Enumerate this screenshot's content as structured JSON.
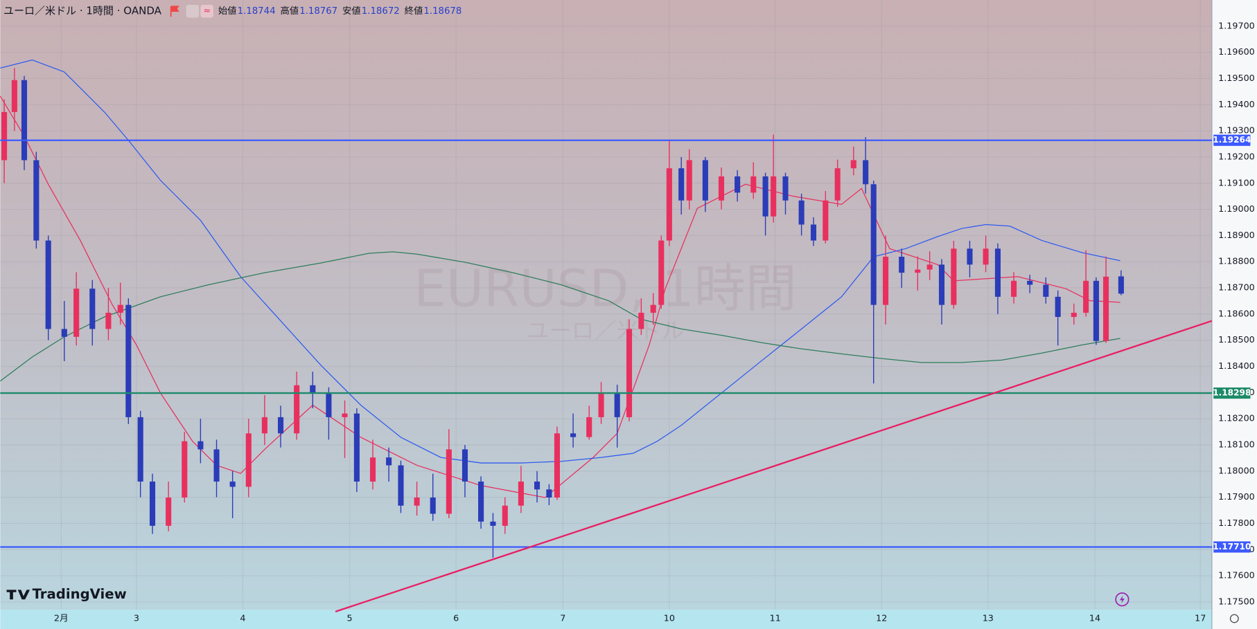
{
  "chart_data": {
    "type": "candlestick",
    "title": "ユーロ／米ドル · 1時間 · OANDA",
    "ohlc_labels": [
      "始値",
      "高値",
      "安値",
      "終値"
    ],
    "watermark": "EURUSD, 1時間",
    "watermark_subtitle": "ユーロ／米ドル",
    "logo": "TradingView",
    "up_color": "#e8305f",
    "down_color": "#2a3cb8",
    "xlim": [
      0,
      272.2
    ],
    "xticks": [
      {
        "value": 13.7,
        "label": "2月"
      },
      {
        "value": 30.6,
        "label": "3"
      },
      {
        "value": 54.5,
        "label": "4"
      },
      {
        "value": 78.5,
        "label": "5"
      },
      {
        "value": 102.4,
        "label": "6"
      },
      {
        "value": 126.4,
        "label": "7"
      },
      {
        "value": 150.3,
        "label": "10"
      },
      {
        "value": 174.1,
        "label": "11"
      },
      {
        "value": 198,
        "label": "12"
      },
      {
        "value": 221.9,
        "label": "13"
      },
      {
        "value": 245.9,
        "label": "14"
      },
      {
        "value": 269.6,
        "label": "17"
      }
    ],
    "ylim": [
      1.1747,
      1.198
    ],
    "yticks": [
      {
        "value": 1.175,
        "label": "1.17500"
      },
      {
        "value": 1.176,
        "label": "1.17600"
      },
      {
        "value": 1.177,
        "label": "1.17700"
      },
      {
        "value": 1.178,
        "label": "1.17800"
      },
      {
        "value": 1.179,
        "label": "1.17900"
      },
      {
        "value": 1.18,
        "label": "1.18000"
      },
      {
        "value": 1.181,
        "label": "1.18100"
      },
      {
        "value": 1.182,
        "label": "1.18200"
      },
      {
        "value": 1.183,
        "label": "1.18300"
      },
      {
        "value": 1.184,
        "label": "1.18400"
      },
      {
        "value": 1.185,
        "label": "1.18500"
      },
      {
        "value": 1.186,
        "label": "1.18600"
      },
      {
        "value": 1.187,
        "label": "1.18700"
      },
      {
        "value": 1.188,
        "label": "1.18800"
      },
      {
        "value": 1.189,
        "label": "1.18900"
      },
      {
        "value": 1.19,
        "label": "1.19000"
      },
      {
        "value": 1.191,
        "label": "1.19100"
      },
      {
        "value": 1.192,
        "label": "1.19200"
      },
      {
        "value": 1.193,
        "label": "1.19300"
      },
      {
        "value": 1.194,
        "label": "1.19400"
      },
      {
        "value": 1.195,
        "label": "1.19500"
      },
      {
        "value": 1.196,
        "label": "1.19600"
      },
      {
        "value": 1.197,
        "label": "1.19700"
      }
    ],
    "grid": true,
    "x": [
      0.9,
      3.2,
      5.4,
      8.1,
      10.8,
      14.4,
      17.1,
      20.7,
      24.3,
      27,
      28.8,
      31.5,
      34.2,
      37.8,
      41.4,
      45,
      48.6,
      52.2,
      55.8,
      59.4,
      63,
      66.6,
      70.2,
      73.8,
      77.4,
      80.1,
      83.7,
      87.3,
      90,
      93.6,
      97.2,
      100.8,
      104.4,
      108,
      110.7,
      113.4,
      117,
      120.6,
      123.3,
      125.1,
      128.7,
      132.3,
      135,
      138.6,
      141.3,
      144,
      146.7,
      148.5,
      150.3,
      153,
      154.8,
      158.4,
      162,
      165.6,
      169.2,
      171.9,
      173.7,
      176.4,
      180,
      182.7,
      185.4,
      188.1,
      191.7,
      194.4,
      196.2,
      198.9,
      202.5,
      206.1,
      208.8,
      211.5,
      214.2,
      217.8,
      221.4,
      224.1,
      227.7,
      231.3,
      234.9,
      237.6,
      241.2,
      243.9,
      246.2,
      248.4,
      251.8
    ],
    "ohlc": [
      [
        1.19188,
        1.1942,
        1.191,
        1.19372
      ],
      [
        1.19372,
        1.1954,
        1.193,
        1.19494
      ],
      [
        1.19494,
        1.1951,
        1.1915,
        1.19188
      ],
      [
        1.19188,
        1.1922,
        1.1885,
        1.18881
      ],
      [
        1.18881,
        1.189,
        1.185,
        1.18543
      ],
      [
        1.18543,
        1.1865,
        1.1842,
        1.18513
      ],
      [
        1.18513,
        1.1876,
        1.1848,
        1.18697
      ],
      [
        1.18697,
        1.1873,
        1.1848,
        1.18543
      ],
      [
        1.18543,
        1.187,
        1.185,
        1.18605
      ],
      [
        1.18605,
        1.1872,
        1.1856,
        1.18635
      ],
      [
        1.18635,
        1.1866,
        1.1818,
        1.18206
      ],
      [
        1.18206,
        1.1823,
        1.179,
        1.1796
      ],
      [
        1.1796,
        1.1799,
        1.1776,
        1.17791
      ],
      [
        1.17791,
        1.1796,
        1.1777,
        1.17899
      ],
      [
        1.17899,
        1.1815,
        1.1788,
        1.18114
      ],
      [
        1.18114,
        1.182,
        1.1803,
        1.18083
      ],
      [
        1.18083,
        1.1812,
        1.179,
        1.1796
      ],
      [
        1.1796,
        1.18,
        1.1782,
        1.1794
      ],
      [
        1.1794,
        1.182,
        1.179,
        1.18144
      ],
      [
        1.18144,
        1.1829,
        1.181,
        1.18206
      ],
      [
        1.18206,
        1.1825,
        1.1809,
        1.18144
      ],
      [
        1.18144,
        1.1838,
        1.1812,
        1.18328
      ],
      [
        1.18328,
        1.1838,
        1.1824,
        1.18298
      ],
      [
        1.18298,
        1.1832,
        1.1812,
        1.18206
      ],
      [
        1.18206,
        1.1827,
        1.1805,
        1.1822
      ],
      [
        1.1822,
        1.1824,
        1.1792,
        1.1796
      ],
      [
        1.1796,
        1.1812,
        1.1793,
        1.18052
      ],
      [
        1.18052,
        1.1809,
        1.1796,
        1.18022
      ],
      [
        1.18022,
        1.1804,
        1.1784,
        1.17868
      ],
      [
        1.17868,
        1.1796,
        1.1783,
        1.17899
      ],
      [
        1.17899,
        1.1799,
        1.1781,
        1.17837
      ],
      [
        1.17837,
        1.1816,
        1.1782,
        1.18083
      ],
      [
        1.18083,
        1.181,
        1.179,
        1.1796
      ],
      [
        1.1796,
        1.1798,
        1.1778,
        1.17807
      ],
      [
        1.17807,
        1.1784,
        1.17669,
        1.17791
      ],
      [
        1.17791,
        1.179,
        1.1776,
        1.17868
      ],
      [
        1.17868,
        1.1802,
        1.1784,
        1.1796
      ],
      [
        1.1796,
        1.18,
        1.1788,
        1.1793
      ],
      [
        1.1793,
        1.1795,
        1.1787,
        1.17899
      ],
      [
        1.17899,
        1.1817,
        1.1789,
        1.18144
      ],
      [
        1.18144,
        1.1822,
        1.1809,
        1.1813
      ],
      [
        1.1813,
        1.1825,
        1.1812,
        1.18206
      ],
      [
        1.18206,
        1.1834,
        1.1818,
        1.18298
      ],
      [
        1.18298,
        1.1833,
        1.1809,
        1.18206
      ],
      [
        1.18206,
        1.1858,
        1.1819,
        1.18543
      ],
      [
        1.18543,
        1.1866,
        1.1852,
        1.18605
      ],
      [
        1.18605,
        1.1868,
        1.1856,
        1.18635
      ],
      [
        1.18635,
        1.189,
        1.1862,
        1.18881
      ],
      [
        1.18881,
        1.19264,
        1.1886,
        1.19157
      ],
      [
        1.19157,
        1.192,
        1.1898,
        1.19034
      ],
      [
        1.19034,
        1.1923,
        1.19,
        1.19188
      ],
      [
        1.19188,
        1.192,
        1.1899,
        1.19034
      ],
      [
        1.19034,
        1.1916,
        1.19,
        1.19126
      ],
      [
        1.19126,
        1.1915,
        1.1903,
        1.19064
      ],
      [
        1.19064,
        1.1918,
        1.1904,
        1.19126
      ],
      [
        1.19126,
        1.1914,
        1.189,
        1.18973
      ],
      [
        1.18973,
        1.19286,
        1.1895,
        1.19126
      ],
      [
        1.19126,
        1.1914,
        1.1898,
        1.19034
      ],
      [
        1.19034,
        1.1906,
        1.189,
        1.18942
      ],
      [
        1.18942,
        1.1897,
        1.1886,
        1.18881
      ],
      [
        1.18881,
        1.1907,
        1.1887,
        1.19034
      ],
      [
        1.19034,
        1.1919,
        1.1901,
        1.19157
      ],
      [
        1.19157,
        1.1924,
        1.1913,
        1.19188
      ],
      [
        1.19188,
        1.19276,
        1.1906,
        1.19096
      ],
      [
        1.19096,
        1.1911,
        1.18335,
        1.18635
      ],
      [
        1.18635,
        1.189,
        1.1856,
        1.18819
      ],
      [
        1.18819,
        1.1885,
        1.187,
        1.18758
      ],
      [
        1.18758,
        1.1882,
        1.1869,
        1.1877
      ],
      [
        1.1877,
        1.1884,
        1.1873,
        1.18789
      ],
      [
        1.18789,
        1.1881,
        1.1856,
        1.18635
      ],
      [
        1.18635,
        1.1888,
        1.1862,
        1.1885
      ],
      [
        1.1885,
        1.1888,
        1.1874,
        1.18789
      ],
      [
        1.18789,
        1.189,
        1.1876,
        1.1885
      ],
      [
        1.1885,
        1.1887,
        1.186,
        1.18666
      ],
      [
        1.18666,
        1.1876,
        1.1864,
        1.18727
      ],
      [
        1.18727,
        1.1875,
        1.1868,
        1.18712
      ],
      [
        1.18712,
        1.1874,
        1.1864,
        1.18666
      ],
      [
        1.18666,
        1.1869,
        1.1848,
        1.18589
      ],
      [
        1.18589,
        1.1864,
        1.1856,
        1.18605
      ],
      [
        1.18605,
        1.18844,
        1.1859,
        1.18727
      ],
      [
        1.18727,
        1.1874,
        1.18482,
        1.18497
      ],
      [
        1.18497,
        1.1882,
        1.1849,
        1.18743
      ],
      [
        1.18744,
        1.18767,
        1.18672,
        1.18678
      ]
    ],
    "moving_averages": [
      {
        "color": "#e8305f",
        "x": [
          0,
          5.4,
          10.8,
          18,
          25.2,
          30.6,
          36,
          43.2,
          48.6,
          54,
          59.4,
          70.2,
          81,
          93.6,
          108,
          122.4,
          133.2,
          138.6,
          145.8,
          149.4,
          156.6,
          167.4,
          178.2,
          189,
          193.5,
          199.8,
          210.6,
          214.2,
          228.6,
          239.4,
          244.8,
          251.6
        ],
        "values": [
          1.19433,
          1.1928,
          1.19096,
          1.18881,
          1.18635,
          1.18482,
          1.18298,
          1.18114,
          1.18022,
          1.17991,
          1.18083,
          1.18252,
          1.18129,
          1.18022,
          1.17945,
          1.17899,
          1.18052,
          1.18144,
          1.18482,
          1.18697,
          1.19004,
          1.19096,
          1.1905,
          1.19019,
          1.1908,
          1.1885,
          1.18789,
          1.18727,
          1.18743,
          1.18697,
          1.18651,
          1.18645
        ]
      },
      {
        "color": "#2f5cf0",
        "x": [
          0,
          7.2,
          14.4,
          23.4,
          28.8,
          36,
          45,
          54,
          63,
          72,
          81,
          90,
          99,
          108,
          117,
          126,
          135,
          142.2,
          147.6,
          153,
          162,
          171,
          180,
          189,
          196.2,
          203.4,
          210.6,
          216,
          221.4,
          226.8,
          234,
          243,
          251.6
        ],
        "values": [
          1.1954,
          1.19571,
          1.19525,
          1.19372,
          1.19264,
          1.19111,
          1.18958,
          1.18743,
          1.18574,
          1.18405,
          1.18252,
          1.18129,
          1.18052,
          1.18031,
          1.18031,
          1.18037,
          1.18052,
          1.18068,
          1.18114,
          1.18175,
          1.18298,
          1.18421,
          1.18543,
          1.18666,
          1.18819,
          1.1885,
          1.18896,
          1.18927,
          1.18942,
          1.18936,
          1.18881,
          1.18835,
          1.18804
        ]
      },
      {
        "color": "#2e7d5b",
        "x": [
          0,
          7.2,
          14.4,
          23.4,
          36,
          46.8,
          59.4,
          72,
          82.8,
          88.2,
          93.6,
          104.4,
          115.2,
          126,
          136.8,
          144,
          153,
          162,
          171,
          180,
          189,
          198,
          207,
          216,
          225,
          234,
          243,
          251.6
        ],
        "values": [
          1.18344,
          1.18436,
          1.18513,
          1.18589,
          1.18666,
          1.18712,
          1.18758,
          1.18795,
          1.18832,
          1.18838,
          1.18829,
          1.18798,
          1.18758,
          1.18712,
          1.1865,
          1.1858,
          1.18543,
          1.18519,
          1.18491,
          1.18467,
          1.18448,
          1.1843,
          1.18415,
          1.18415,
          1.18424,
          1.18451,
          1.18482,
          1.18507
        ]
      }
    ],
    "levels": [
      {
        "value": 1.19264,
        "color": "#3d5afe"
      },
      {
        "value": 1.18298,
        "color": "#1e8a6a"
      },
      {
        "value": 1.1771,
        "label": "1.17710",
        "color": "#3d5afe"
      }
    ],
    "trend_line": {
      "x": [
        75.3,
        272.2
      ],
      "values": [
        1.17463,
        1.18574
      ],
      "color": "#e91e63"
    }
  }
}
